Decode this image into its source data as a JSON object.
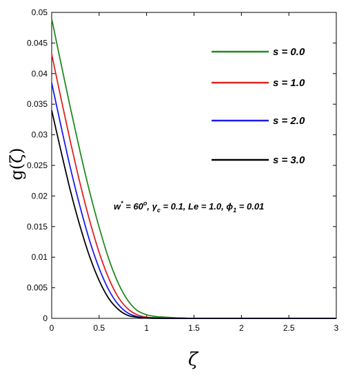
{
  "chart_data": {
    "type": "line",
    "title": "",
    "xlabel": "ζ",
    "ylabel": "g(ζ)",
    "xlim": [
      0,
      3
    ],
    "ylim": [
      0,
      0.05
    ],
    "x_ticks": [
      "0",
      "0.5",
      "1",
      "1.5",
      "2",
      "2.5",
      "3"
    ],
    "y_ticks": [
      "0",
      "0.005",
      "0.01",
      "0.015",
      "0.02",
      "0.025",
      "0.03",
      "0.035",
      "0.04",
      "0.045",
      "0.05"
    ],
    "grid": false,
    "legend_position": "top-right",
    "x": [
      0,
      0.1,
      0.2,
      0.3,
      0.4,
      0.5,
      0.6,
      0.7,
      0.8,
      0.9,
      1.0,
      1.1,
      1.2,
      1.3,
      1.4,
      1.5,
      2.0,
      2.5,
      3.0
    ],
    "series": [
      {
        "name": "s = 0.0",
        "color": "#1e8a1e",
        "values": [
          0.049,
          0.0415,
          0.0342,
          0.0272,
          0.0207,
          0.0149,
          0.0098,
          0.0058,
          0.003,
          0.0013,
          0.0006,
          0.0003,
          0.0002,
          0.0001,
          5e-05,
          0.0,
          0.0,
          0.0,
          0.0
        ]
      },
      {
        "name": "s = 1.0",
        "color": "#e02020",
        "values": [
          0.0432,
          0.0358,
          0.0287,
          0.022,
          0.016,
          0.0108,
          0.0066,
          0.0035,
          0.0016,
          0.0006,
          0.0002,
          0.0001,
          5e-05,
          0.0,
          0.0,
          0.0,
          0.0,
          0.0,
          0.0
        ]
      },
      {
        "name": "s = 2.0",
        "color": "#1a1aee",
        "values": [
          0.0385,
          0.0313,
          0.0244,
          0.0182,
          0.0127,
          0.0082,
          0.0047,
          0.0023,
          0.0009,
          0.0003,
          0.0001,
          5e-05,
          0.0,
          0.0,
          0.0,
          0.0,
          0.0,
          0.0,
          0.0
        ]
      },
      {
        "name": "s = 3.0",
        "color": "#000000",
        "values": [
          0.034,
          0.0272,
          0.0207,
          0.015,
          0.0101,
          0.0062,
          0.0033,
          0.0015,
          0.0005,
          0.0002,
          5e-05,
          0.0,
          0.0,
          0.0,
          0.0,
          0.0,
          0.0,
          0.0,
          0.0
        ]
      }
    ],
    "annotation": {
      "w": "w",
      "w_sup": "*",
      "w_val": " = 60",
      "w_deg": "o",
      "gamma": ", γ",
      "gamma_sub": "c",
      "rest": " = 0.1, Le = 1.0, ϕ",
      "phi_sub": "1",
      "phi_val": " = 0.01"
    }
  }
}
